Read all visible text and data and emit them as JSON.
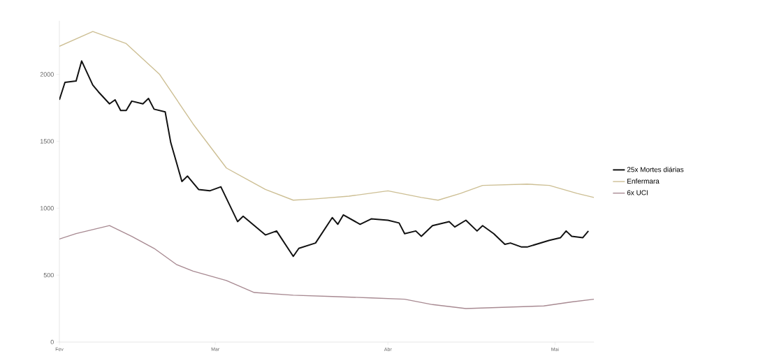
{
  "chart_data": {
    "type": "line",
    "categories": [
      "Fev",
      null,
      null,
      null,
      null,
      null,
      null,
      null,
      null,
      null,
      null,
      null,
      null,
      null,
      null,
      null,
      null,
      null,
      null,
      null,
      null,
      null,
      null,
      null,
      null,
      null,
      null,
      null,
      "Mar",
      null,
      null,
      null,
      null,
      null,
      null,
      null,
      null,
      null,
      null,
      null,
      null,
      null,
      null,
      null,
      null,
      null,
      null,
      null,
      null,
      null,
      null,
      null,
      null,
      null,
      null,
      null,
      null,
      null,
      null,
      "Abr",
      null,
      null,
      null,
      null,
      null,
      null,
      null,
      null,
      null,
      null,
      null,
      null,
      null,
      null,
      null,
      null,
      null,
      null,
      null,
      null,
      null,
      null,
      null,
      null,
      null,
      null,
      null,
      null,
      null,
      "Mai",
      null,
      null,
      null,
      null,
      null,
      null,
      null
    ],
    "ylim": [
      0,
      2400
    ],
    "yticks": [
      0,
      500,
      1000,
      1500,
      2000
    ],
    "legend": "right",
    "grid": false,
    "marker": "none",
    "line_style": "solid",
    "series": [
      {
        "name": "25x Mortes diárias",
        "color": "#111111",
        "values": [
          1810,
          1940,
          null,
          1950,
          2100,
          null,
          1920,
          1870,
          null,
          1780,
          1810,
          1730,
          1730,
          1800,
          null,
          1780,
          1820,
          1740,
          null,
          1720,
          1490,
          null,
          1200,
          1240,
          null,
          1140,
          null,
          1130,
          null,
          1160,
          null,
          null,
          900,
          940,
          null,
          null,
          null,
          800,
          null,
          830,
          null,
          null,
          640,
          700,
          null,
          null,
          740,
          null,
          null,
          930,
          880,
          950,
          null,
          null,
          880,
          null,
          920,
          null,
          null,
          910,
          null,
          890,
          810,
          null,
          830,
          790,
          null,
          870,
          null,
          null,
          900,
          860,
          null,
          910,
          null,
          830,
          870,
          null,
          810,
          null,
          730,
          740,
          null,
          710,
          710,
          null,
          null,
          null,
          760,
          null,
          780,
          830,
          790,
          null,
          780,
          830,
          null
        ]
      },
      {
        "name": "Enfermara",
        "color": "#cdbf94",
        "values": [
          2210,
          null,
          null,
          null,
          null,
          null,
          2320,
          null,
          null,
          null,
          null,
          null,
          2230,
          null,
          null,
          null,
          null,
          null,
          2000,
          null,
          null,
          null,
          null,
          null,
          1630,
          null,
          null,
          null,
          null,
          null,
          1300,
          null,
          null,
          null,
          null,
          null,
          null,
          1140,
          null,
          null,
          null,
          null,
          1060,
          null,
          null,
          null,
          1070,
          null,
          null,
          null,
          null,
          null,
          1090,
          null,
          null,
          null,
          null,
          null,
          null,
          1130,
          null,
          null,
          null,
          null,
          null,
          1080,
          null,
          null,
          1060,
          null,
          null,
          null,
          1110,
          null,
          null,
          null,
          1170,
          null,
          null,
          null,
          null,
          null,
          null,
          null,
          1180,
          null,
          null,
          null,
          1170,
          null,
          null,
          null,
          null,
          1110,
          null,
          null,
          1080
        ]
      },
      {
        "name": "6x UCI",
        "color": "#a88a92",
        "values": [
          770,
          null,
          null,
          810,
          null,
          null,
          null,
          null,
          null,
          870,
          null,
          null,
          null,
          790,
          null,
          null,
          null,
          700,
          null,
          null,
          null,
          580,
          null,
          null,
          530,
          null,
          null,
          null,
          null,
          null,
          460,
          null,
          null,
          null,
          null,
          370,
          null,
          null,
          null,
          null,
          null,
          null,
          350,
          null,
          null,
          null,
          null,
          null,
          null,
          340,
          null,
          null,
          null,
          null,
          null,
          null,
          330,
          null,
          null,
          null,
          null,
          null,
          320,
          null,
          null,
          null,
          null,
          280,
          null,
          null,
          null,
          null,
          null,
          250,
          null,
          null,
          null,
          null,
          null,
          null,
          260,
          null,
          null,
          null,
          null,
          null,
          null,
          270,
          null,
          null,
          null,
          null,
          300,
          null,
          null,
          null,
          320
        ]
      }
    ]
  }
}
